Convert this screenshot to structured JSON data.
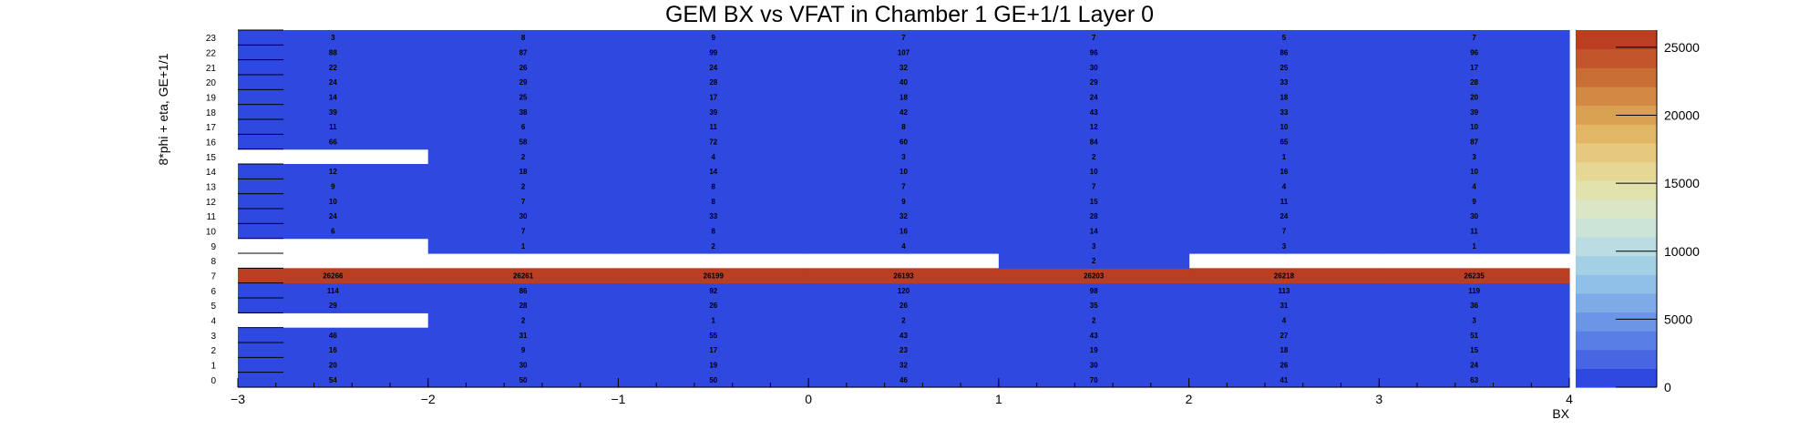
{
  "chart_data": {
    "type": "heatmap",
    "title": "GEM BX vs VFAT in Chamber 1 GE+1/1 Layer 0",
    "xlabel": "BX",
    "ylabel": "8*phi + eta, GE+1/1",
    "xlim": [
      -3,
      4
    ],
    "ylim": [
      -0.5,
      23.5
    ],
    "x_bins": [
      -2.5,
      -1.5,
      -0.5,
      0.5,
      1.5,
      2.5,
      3.5
    ],
    "x_bin_width": 1,
    "x_ticks": [
      "−3",
      "−2",
      "−1",
      "0",
      "1",
      "2",
      "3",
      "4"
    ],
    "y_ticks": [
      "0",
      "1",
      "2",
      "3",
      "4",
      "5",
      "6",
      "7",
      "8",
      "9",
      "10",
      "11",
      "12",
      "13",
      "14",
      "15",
      "16",
      "17",
      "18",
      "19",
      "20",
      "21",
      "22",
      "23"
    ],
    "rows": [
      {
        "y": 0,
        "values": [
          54,
          50,
          50,
          46,
          70,
          41,
          63
        ]
      },
      {
        "y": 1,
        "values": [
          20,
          30,
          19,
          32,
          30,
          26,
          24
        ]
      },
      {
        "y": 2,
        "values": [
          16,
          9,
          17,
          23,
          19,
          18,
          15
        ]
      },
      {
        "y": 3,
        "values": [
          46,
          31,
          55,
          43,
          43,
          27,
          51
        ]
      },
      {
        "y": 4,
        "values": [
          null,
          2,
          1,
          2,
          2,
          4,
          3
        ]
      },
      {
        "y": 5,
        "values": [
          29,
          28,
          26,
          26,
          35,
          31,
          36
        ]
      },
      {
        "y": 6,
        "values": [
          114,
          86,
          92,
          120,
          98,
          113,
          119
        ]
      },
      {
        "y": 7,
        "values": [
          26266,
          26261,
          26199,
          26193,
          26203,
          26218,
          26235
        ]
      },
      {
        "y": 8,
        "values": [
          null,
          null,
          null,
          null,
          2,
          null,
          null
        ]
      },
      {
        "y": 9,
        "values": [
          null,
          1,
          2,
          4,
          3,
          3,
          1
        ]
      },
      {
        "y": 10,
        "values": [
          6,
          7,
          8,
          16,
          14,
          7,
          11
        ]
      },
      {
        "y": 11,
        "values": [
          24,
          30,
          33,
          32,
          28,
          24,
          30
        ]
      },
      {
        "y": 12,
        "values": [
          10,
          7,
          8,
          9,
          15,
          11,
          9
        ]
      },
      {
        "y": 13,
        "values": [
          9,
          2,
          8,
          7,
          7,
          4,
          4
        ]
      },
      {
        "y": 14,
        "values": [
          12,
          18,
          14,
          10,
          10,
          16,
          10
        ]
      },
      {
        "y": 15,
        "values": [
          null,
          2,
          4,
          3,
          2,
          1,
          3
        ]
      },
      {
        "y": 16,
        "values": [
          66,
          58,
          72,
          60,
          84,
          65,
          87
        ]
      },
      {
        "y": 17,
        "values": [
          11,
          6,
          11,
          8,
          12,
          10,
          10
        ]
      },
      {
        "y": 18,
        "values": [
          39,
          38,
          39,
          42,
          43,
          33,
          39
        ]
      },
      {
        "y": 19,
        "values": [
          14,
          25,
          17,
          18,
          24,
          18,
          20
        ]
      },
      {
        "y": 20,
        "values": [
          24,
          29,
          28,
          40,
          29,
          33,
          28
        ]
      },
      {
        "y": 21,
        "values": [
          22,
          26,
          24,
          32,
          30,
          25,
          17
        ]
      },
      {
        "y": 22,
        "values": [
          88,
          87,
          99,
          107,
          96,
          86,
          96
        ]
      },
      {
        "y": 23,
        "values": [
          3,
          8,
          9,
          7,
          7,
          5,
          7
        ]
      }
    ],
    "color_scale": {
      "min": 0,
      "max": 26266,
      "ticks": [
        "0",
        "5000",
        "10000",
        "15000",
        "20000",
        "25000"
      ],
      "colors": [
        "#2f48e0",
        "#4966e2",
        "#5a7fe4",
        "#6b96e6",
        "#7cabe8",
        "#8fc0e8",
        "#a4d0e6",
        "#b9dde2",
        "#cce4d8",
        "#dae6c6",
        "#e2e2ad",
        "#e6d794",
        "#e6c97c",
        "#e1b766",
        "#d9a152",
        "#d18943",
        "#c96f36",
        "#c1552b",
        "#b93e22"
      ]
    }
  }
}
